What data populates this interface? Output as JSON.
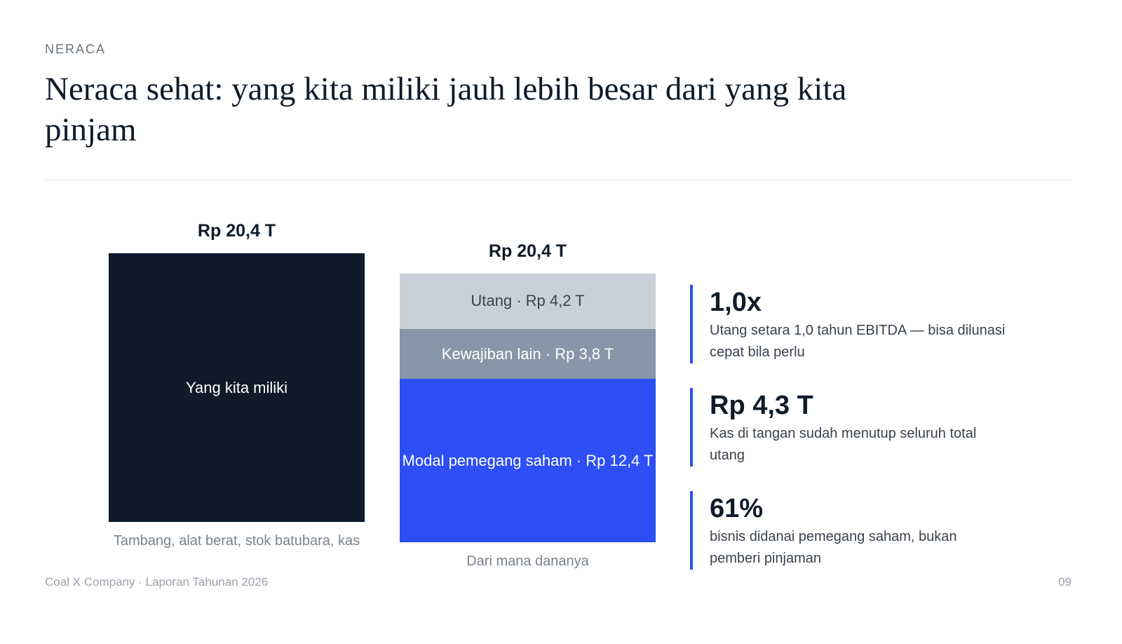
{
  "eyebrow": "NERACA",
  "title": "Neraca sehat: yang kita miliki jauh lebih besar dari yang kita pinjam",
  "chart_data": {
    "type": "stacked_column",
    "columns": [
      {
        "total": 20.4,
        "total_label": "Rp 20,4 T",
        "caption": "Tambang, alat berat, stok batubara, kas",
        "segments": [
          {
            "label": "Yang kita miliki",
            "value": 20.4,
            "color": "#0f1b2a"
          }
        ]
      },
      {
        "total": 20.4,
        "total_label": "Rp 20,4 T",
        "caption": "Dari mana dananya",
        "segments": [
          {
            "label": "Utang · Rp 4,2 T",
            "value": 4.2,
            "color": "#c9d0d8"
          },
          {
            "label": "Kewajiban lain · Rp 3,8 T",
            "value": 3.8,
            "color": "#8796a8"
          },
          {
            "label": "Modal pemegang saham · Rp 12,4 T",
            "value": 12.4,
            "color": "#2d4ff5"
          }
        ]
      }
    ]
  },
  "stats": [
    {
      "figure": "1,0x",
      "text": "Utang setara 1,0 tahun EBITDA — bisa dilunasi cepat bila perlu"
    },
    {
      "figure": "Rp 4,3 T",
      "text": "Kas di tangan sudah menutup seluruh total utang"
    },
    {
      "figure": "61%",
      "text": "bisnis didanai pemegang saham, bukan pemberi pinjaman"
    }
  ],
  "footer": {
    "left": "Coal X Company · Laporan Tahunan 2026",
    "page": "09"
  }
}
